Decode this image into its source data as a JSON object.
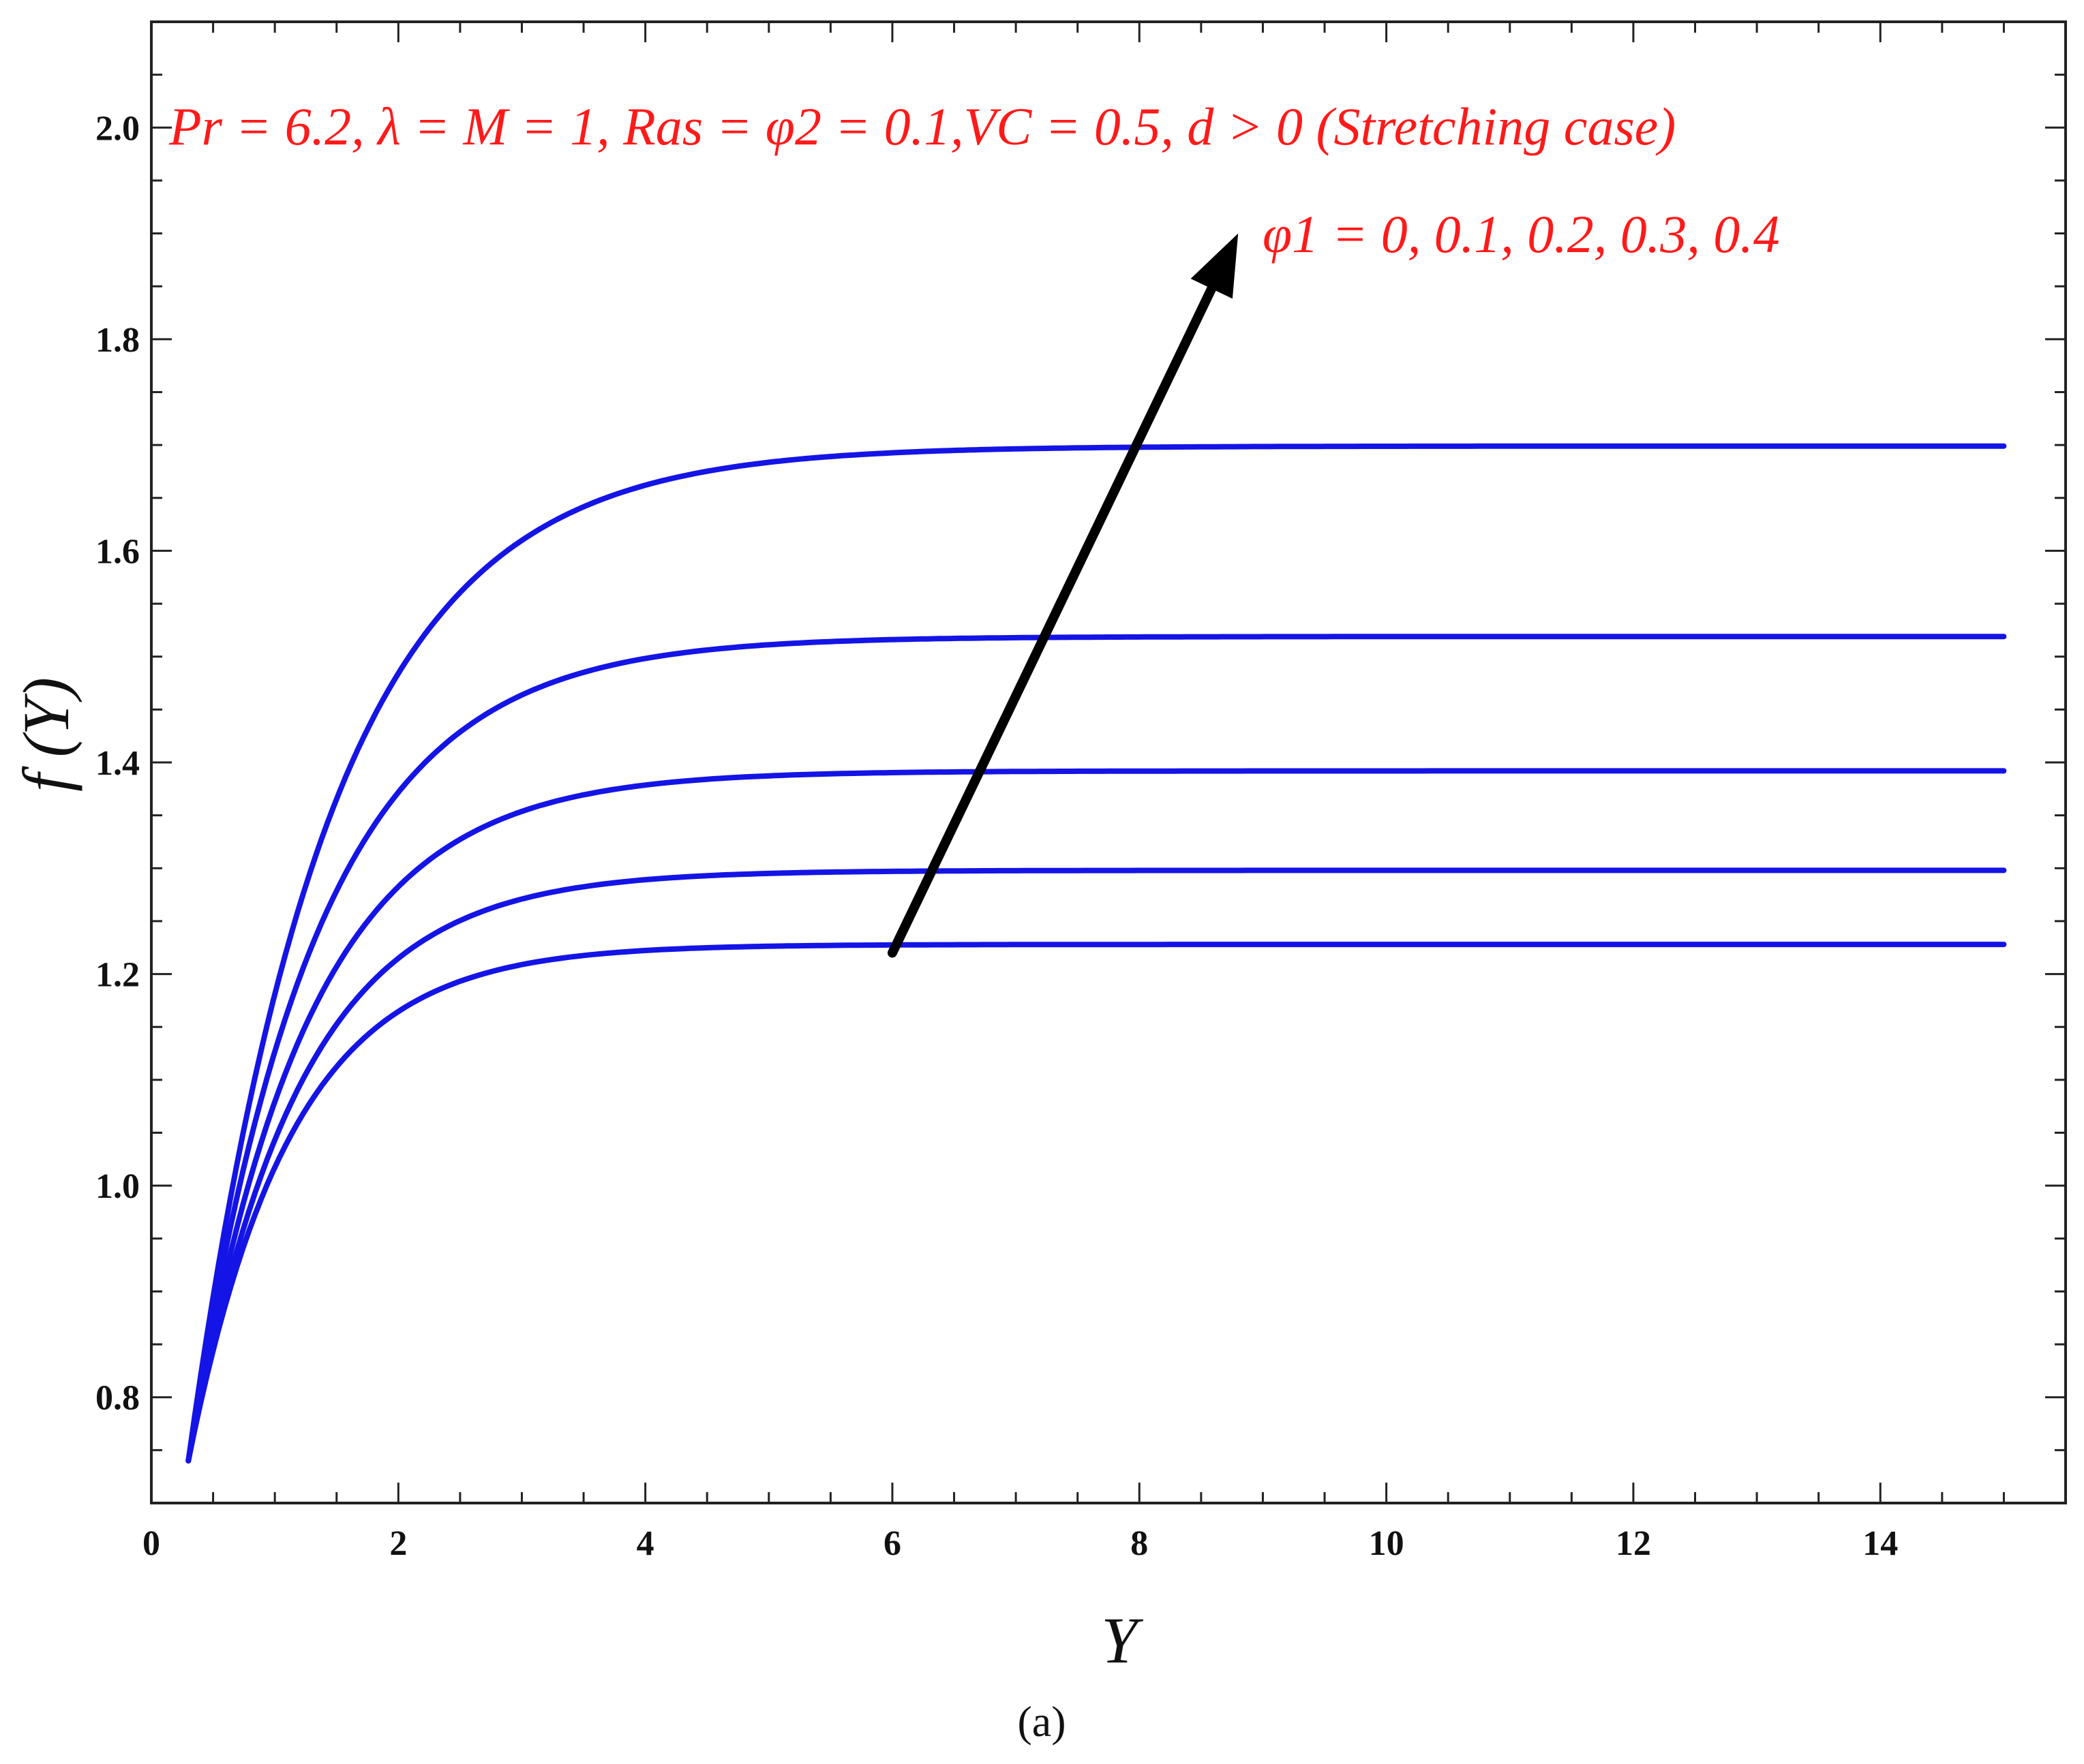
{
  "chart_data": {
    "type": "line",
    "title": "",
    "xlabel": "Y",
    "ylabel": "f (Y)",
    "xlim": [
      0,
      15.5
    ],
    "ylim": [
      0.7,
      2.1
    ],
    "xticks": [
      0,
      2,
      4,
      6,
      8,
      10,
      12,
      14
    ],
    "yticks": [
      0.8,
      1.0,
      1.2,
      1.4,
      1.6,
      1.8,
      2.0
    ],
    "ytick_labels": [
      "0.8",
      "1.0",
      "1.2",
      "1.4",
      "1.6",
      "1.8",
      "2.0"
    ],
    "grid": false,
    "line_color": "#1414e6",
    "annotation_color": "#ff1a1a",
    "parameter_text": "Pr = 6.2,  λ = M = 1, Ras = φ2 = 0.1,VC = 0.5, d > 0 (Stretching case)",
    "arrow_label": "φ1 = 0, 0.1, 0.2, 0.3, 0.4",
    "arrow": {
      "from": [
        6.0,
        1.22
      ],
      "to": [
        8.8,
        1.9
      ]
    },
    "series": [
      {
        "phi1": 0,
        "start": [
          0.3,
          0.74
        ],
        "asymptote": 1.228,
        "rate": 1.2,
        "x": [
          0.3,
          0.5,
          1,
          1.5,
          2,
          2.5,
          3,
          4,
          5,
          6,
          8,
          10,
          12,
          15
        ],
        "y": [
          0.74,
          0.85,
          1.03,
          1.13,
          1.18,
          1.205,
          1.217,
          1.225,
          1.227,
          1.228,
          1.228,
          1.228,
          1.228,
          1.228
        ]
      },
      {
        "phi1": 0.1,
        "start": [
          0.3,
          0.74
        ],
        "asymptote": 1.298,
        "rate": 1.12,
        "x": [
          0.3,
          0.5,
          1,
          1.5,
          2,
          2.5,
          3,
          4,
          5,
          6,
          8,
          10,
          12,
          15
        ],
        "y": [
          0.74,
          0.87,
          1.07,
          1.18,
          1.24,
          1.27,
          1.285,
          1.295,
          1.297,
          1.298,
          1.298,
          1.298,
          1.298,
          1.298
        ]
      },
      {
        "phi1": 0.2,
        "start": [
          0.3,
          0.74
        ],
        "asymptote": 1.392,
        "rate": 1.05,
        "x": [
          0.3,
          0.5,
          1,
          1.5,
          2,
          2.5,
          3,
          4,
          5,
          6,
          8,
          10,
          12,
          15
        ],
        "y": [
          0.74,
          0.89,
          1.11,
          1.24,
          1.31,
          1.35,
          1.37,
          1.386,
          1.39,
          1.392,
          1.392,
          1.392,
          1.392,
          1.392
        ]
      },
      {
        "phi1": 0.3,
        "start": [
          0.3,
          0.74
        ],
        "asymptote": 1.519,
        "rate": 0.98,
        "x": [
          0.3,
          0.5,
          1,
          1.5,
          2,
          2.5,
          3,
          4,
          5,
          6,
          8,
          10,
          12,
          15
        ],
        "y": [
          0.74,
          0.91,
          1.15,
          1.31,
          1.4,
          1.455,
          1.485,
          1.51,
          1.516,
          1.518,
          1.519,
          1.519,
          1.519,
          1.519
        ]
      },
      {
        "phi1": 0.4,
        "start": [
          0.3,
          0.74
        ],
        "asymptote": 1.699,
        "rate": 0.88,
        "x": [
          0.3,
          0.5,
          1,
          1.5,
          2,
          2.5,
          3,
          4,
          5,
          6,
          8,
          10,
          12,
          15
        ],
        "y": [
          0.74,
          0.93,
          1.22,
          1.4,
          1.51,
          1.58,
          1.63,
          1.675,
          1.69,
          1.696,
          1.699,
          1.699,
          1.699,
          1.699
        ]
      }
    ]
  },
  "caption": "(a)"
}
